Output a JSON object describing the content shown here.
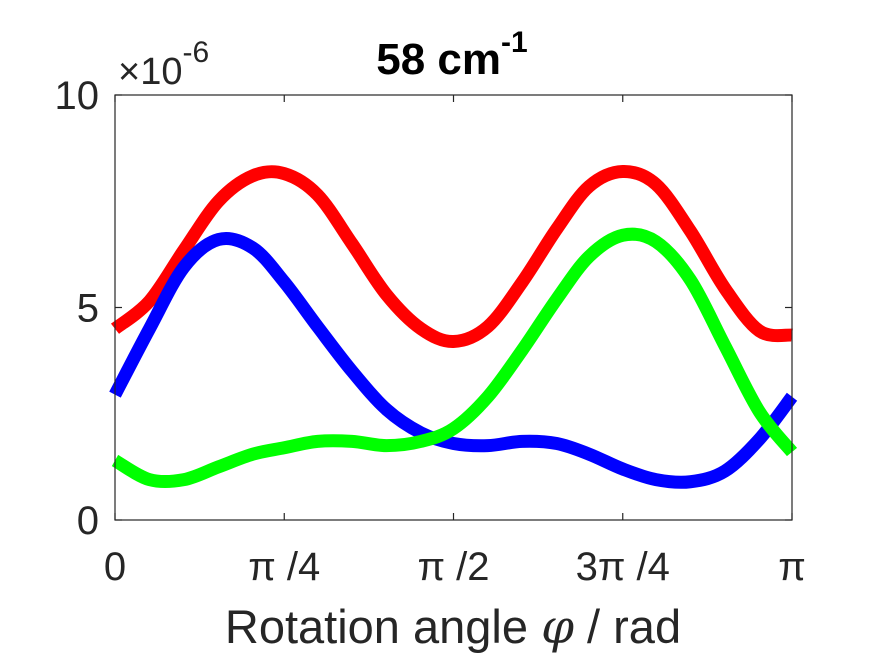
{
  "chart_data": {
    "type": "line",
    "title": "58 cm",
    "title_superscript": "-1",
    "xlabel_parts": [
      "Rotation angle ",
      "φ",
      " / rad"
    ],
    "ylabel": "",
    "y_multiplier": "×10",
    "y_multiplier_exponent": "-6",
    "xlim": [
      0,
      3.14159
    ],
    "ylim": [
      0,
      10
    ],
    "grid": false,
    "x_ticks": [
      {
        "value": 0,
        "label": "0"
      },
      {
        "value": 0.7854,
        "label": "π /4"
      },
      {
        "value": 1.5708,
        "label": "π /2"
      },
      {
        "value": 2.3562,
        "label": "3π /4"
      },
      {
        "value": 3.14159,
        "label": "π"
      }
    ],
    "y_ticks": [
      {
        "value": 0,
        "label": "0"
      },
      {
        "value": 5,
        "label": "5"
      },
      {
        "value": 10,
        "label": "10"
      }
    ],
    "series": [
      {
        "color": "#ff0000",
        "x": [
          0,
          0.16,
          0.32,
          0.48,
          0.64,
          0.7854,
          0.94,
          1.1,
          1.26,
          1.42,
          1.5708,
          1.73,
          1.89,
          2.05,
          2.2,
          2.3562,
          2.51,
          2.67,
          2.83,
          2.99,
          3.14159
        ],
        "y": [
          4.5,
          5.15,
          6.35,
          7.5,
          8.1,
          8.15,
          7.65,
          6.5,
          5.3,
          4.5,
          4.2,
          4.55,
          5.6,
          6.85,
          7.85,
          8.2,
          7.9,
          6.8,
          5.45,
          4.45,
          4.35
        ]
      },
      {
        "color": "#0000ff",
        "x": [
          0,
          0.16,
          0.32,
          0.48,
          0.64,
          0.7854,
          0.94,
          1.1,
          1.26,
          1.42,
          1.5708,
          1.73,
          1.89,
          2.05,
          2.2,
          2.3562,
          2.51,
          2.67,
          2.83,
          2.99,
          3.14159
        ],
        "y": [
          2.95,
          4.5,
          5.95,
          6.6,
          6.4,
          5.6,
          4.55,
          3.5,
          2.6,
          2.05,
          1.8,
          1.75,
          1.85,
          1.8,
          1.55,
          1.2,
          0.95,
          0.9,
          1.15,
          1.9,
          2.9
        ]
      },
      {
        "color": "#00ff00",
        "x": [
          0,
          0.16,
          0.32,
          0.48,
          0.64,
          0.7854,
          0.94,
          1.1,
          1.26,
          1.42,
          1.5708,
          1.73,
          1.89,
          2.05,
          2.2,
          2.3562,
          2.51,
          2.67,
          2.83,
          2.99,
          3.14159
        ],
        "y": [
          1.4,
          0.95,
          0.95,
          1.25,
          1.55,
          1.7,
          1.85,
          1.85,
          1.75,
          1.85,
          2.15,
          2.9,
          4.0,
          5.2,
          6.2,
          6.7,
          6.55,
          5.65,
          4.1,
          2.55,
          1.6
        ]
      }
    ]
  }
}
